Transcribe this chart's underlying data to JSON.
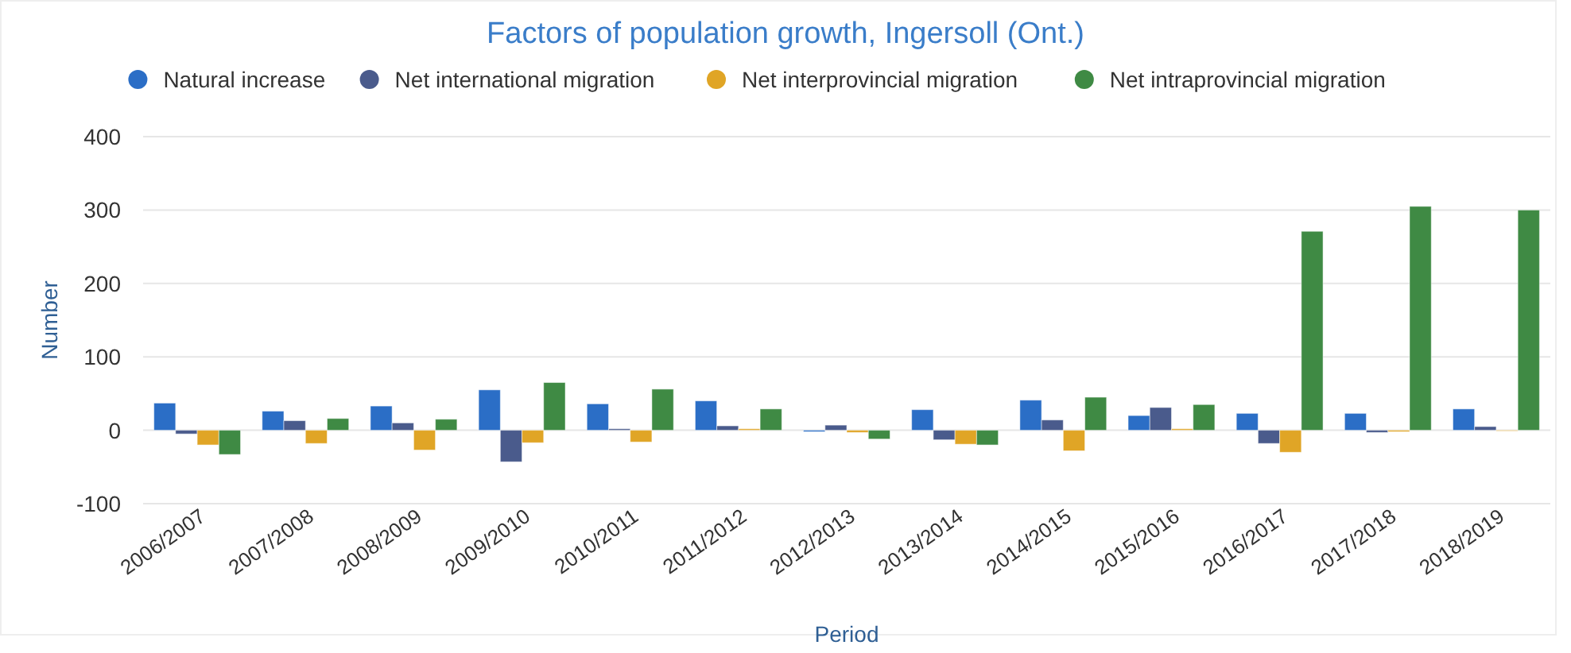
{
  "chart_data": {
    "type": "bar",
    "title": "Factors of population growth, Ingersoll (Ont.)",
    "xlabel": "Period",
    "ylabel": "Number",
    "categories": [
      "2006/2007",
      "2007/2008",
      "2008/2009",
      "2009/2010",
      "2010/2011",
      "2011/2012",
      "2012/2013",
      "2013/2014",
      "2014/2015",
      "2015/2016",
      "2016/2017",
      "2017/2018",
      "2018/2019"
    ],
    "series": [
      {
        "name": "Natural increase",
        "color": "#2b6ec6",
        "values": [
          37,
          26,
          33,
          55,
          36,
          40,
          -2,
          28,
          41,
          20,
          23,
          23,
          29
        ]
      },
      {
        "name": "Net international migration",
        "color": "#4a5b8c",
        "values": [
          -5,
          13,
          10,
          -43,
          2,
          6,
          7,
          -13,
          14,
          31,
          -18,
          -3,
          5
        ]
      },
      {
        "name": "Net interprovincial migration",
        "color": "#e0a526",
        "values": [
          -20,
          -18,
          -27,
          -17,
          -16,
          2,
          -3,
          -19,
          -28,
          2,
          -30,
          -2,
          0
        ]
      },
      {
        "name": "Net intraprovincial migration",
        "color": "#3f8a44",
        "values": [
          -33,
          16,
          15,
          65,
          56,
          29,
          -12,
          -20,
          45,
          35,
          271,
          305,
          300
        ]
      }
    ],
    "ylim": [
      -100,
      400
    ],
    "yticks": [
      -100,
      0,
      100,
      200,
      300,
      400
    ],
    "grid": "y",
    "legend": "top"
  }
}
